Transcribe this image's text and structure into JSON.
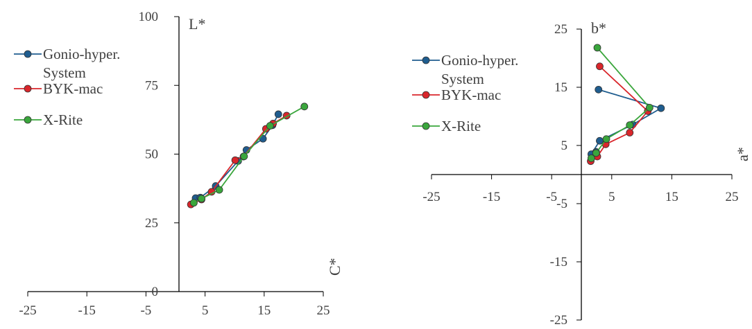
{
  "colors": {
    "gonio": "#1f5d8f",
    "byk": "#d9262b",
    "xrite": "#3aa63c",
    "axis": "#000000",
    "text": "#404040"
  },
  "chart_data": [
    {
      "type": "line",
      "title": "",
      "xlabel": "C*",
      "ylabel": "L*",
      "xlim": [
        -25,
        25
      ],
      "ylim": [
        0,
        100
      ],
      "x_ticks": [
        "-25",
        "-15",
        "-5",
        "5",
        "15",
        "25"
      ],
      "y_ticks": [
        "0",
        "25",
        "50",
        "75",
        "100"
      ],
      "legend": [
        "Gonio-hyper. System",
        "BYK-mac",
        "X-Rite"
      ],
      "legend_lines": [
        [
          "Gonio-hyper.",
          "System"
        ],
        [
          "BYK-mac"
        ],
        [
          "X-Rite"
        ]
      ],
      "legend_position": "left",
      "series": [
        {
          "name": "Gonio-hyper. System",
          "color": "#1f5d8f",
          "points": [
            [
              3.4,
              34
            ],
            [
              4.2,
              34.2
            ],
            [
              6.8,
              38.4
            ],
            [
              10.6,
              47.5
            ],
            [
              12.0,
              51.5
            ],
            [
              14.8,
              55.6
            ],
            [
              16.4,
              60.5
            ],
            [
              17.4,
              64.5
            ]
          ]
        },
        {
          "name": "BYK-mac",
          "color": "#d9262b",
          "points": [
            [
              2.6,
              31.7
            ],
            [
              4.4,
              33.5
            ],
            [
              6.1,
              36.3
            ],
            [
              10.1,
              47.8
            ],
            [
              11.5,
              49.1
            ],
            [
              15.3,
              59.2
            ],
            [
              16.5,
              61.1
            ],
            [
              18.8,
              64
            ]
          ]
        },
        {
          "name": "X-Rite",
          "color": "#3aa63c",
          "points": [
            [
              3.1,
              32.3
            ],
            [
              4.4,
              33.8
            ],
            [
              7.4,
              37
            ],
            [
              11.6,
              49.2
            ],
            [
              16.0,
              60.3
            ],
            [
              21.8,
              67.3
            ]
          ]
        }
      ]
    },
    {
      "type": "line",
      "title": "",
      "xlabel": "a*",
      "ylabel": "b*",
      "xlim": [
        -25,
        25
      ],
      "ylim": [
        -25,
        25
      ],
      "x_ticks": [
        "-25",
        "-15",
        "-5",
        "5",
        "15",
        "25"
      ],
      "y_ticks": [
        "-25",
        "-15",
        "-5",
        "5",
        "15",
        "25"
      ],
      "legend": [
        "Gonio-hyper. System",
        "BYK-mac",
        "X-Rite"
      ],
      "legend_lines": [
        [
          "Gonio-hyper.",
          "System"
        ],
        [
          "BYK-mac"
        ],
        [
          "X-Rite"
        ]
      ],
      "legend_position": "left",
      "series": [
        {
          "name": "Gonio-hyper. System",
          "color": "#1f5d8f",
          "points": [
            [
              2.8,
              14.6
            ],
            [
              13.2,
              11.4
            ],
            [
              8.5,
              8.6
            ],
            [
              3.0,
              5.8
            ],
            [
              1.6,
              3.5
            ],
            [
              2.4,
              3.9
            ]
          ]
        },
        {
          "name": "BYK-mac",
          "color": "#d9262b",
          "points": [
            [
              3.0,
              18.6
            ],
            [
              11.0,
              10.9
            ],
            [
              8.0,
              7.2
            ],
            [
              4.0,
              5.2
            ],
            [
              2.6,
              3.1
            ],
            [
              1.5,
              2.3
            ]
          ]
        },
        {
          "name": "X-Rite",
          "color": "#3aa63c",
          "points": [
            [
              2.6,
              21.8
            ],
            [
              11.3,
              11.5
            ],
            [
              8.0,
              8.5
            ],
            [
              4.1,
              6.1
            ],
            [
              2.4,
              3.7
            ],
            [
              1.6,
              2.8
            ]
          ]
        }
      ]
    }
  ]
}
